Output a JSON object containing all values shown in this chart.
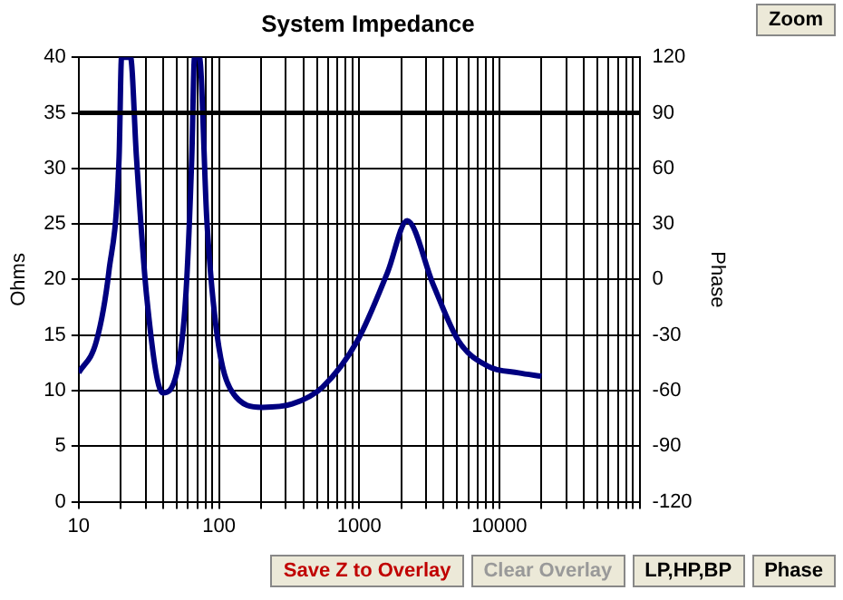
{
  "chart_data": {
    "type": "line",
    "title": "System Impedance",
    "x": [
      10,
      13.4,
      16.4,
      19.4,
      20.2,
      23.4,
      25.8,
      30.5,
      39.7,
      50,
      58,
      64,
      67,
      72.5,
      82,
      97,
      124,
      204,
      333,
      546,
      973,
      1600,
      2200,
      3360,
      5100,
      8300,
      13700,
      20000
    ],
    "series": [
      {
        "color": "#000080",
        "values": [
          11.6,
          14.5,
          20.7,
          31,
          40,
          40,
          31,
          18.5,
          9.8,
          11.6,
          18.5,
          31,
          40,
          40,
          25.3,
          15,
          9.9,
          8.5,
          8.8,
          10.3,
          14.5,
          20.7,
          25.3,
          19.6,
          14.5,
          12.2,
          11.6,
          11.3
        ]
      }
    ],
    "log": "x",
    "xlim": [
      10,
      100000
    ],
    "xticks": [
      10,
      {
        "value": 20,
        "label": null
      },
      {
        "value": 30,
        "label": null
      },
      {
        "value": 40,
        "label": null
      },
      {
        "value": 50,
        "label": null
      },
      {
        "value": 60,
        "label": null
      },
      {
        "value": 70,
        "label": null
      },
      {
        "value": 80,
        "label": null
      },
      {
        "value": 90,
        "label": null
      },
      100,
      {
        "value": 200,
        "label": null
      },
      {
        "value": 300,
        "label": null
      },
      {
        "value": 400,
        "label": null
      },
      {
        "value": 500,
        "label": null
      },
      {
        "value": 600,
        "label": null
      },
      {
        "value": 700,
        "label": null
      },
      {
        "value": 800,
        "label": null
      },
      {
        "value": 900,
        "label": null
      },
      1000,
      {
        "value": 2000,
        "label": null
      },
      {
        "value": 3000,
        "label": null
      },
      {
        "value": 4000,
        "label": null
      },
      {
        "value": 5000,
        "label": null
      },
      {
        "value": 6000,
        "label": null
      },
      {
        "value": 7000,
        "label": null
      },
      {
        "value": 8000,
        "label": null
      },
      {
        "value": 9000,
        "label": null
      },
      10000,
      {
        "value": 20000,
        "label": null
      },
      {
        "value": 30000,
        "label": null
      },
      {
        "value": 40000,
        "label": null
      },
      {
        "value": 50000,
        "label": null
      },
      {
        "value": 60000,
        "label": null
      },
      {
        "value": 70000,
        "label": null
      },
      {
        "value": 80000,
        "label": null
      },
      {
        "value": 90000,
        "label": null
      },
      {
        "value": 100000,
        "label": null
      }
    ],
    "ylim": [
      0,
      40
    ],
    "yticks": [
      0,
      5,
      10,
      15,
      20,
      25,
      30,
      35,
      40
    ],
    "y2lim": [
      -120,
      120
    ],
    "y2ticks": [
      -120,
      -90,
      -60,
      -30,
      0,
      30,
      60,
      90,
      120
    ],
    "ylabel": "Ohms",
    "y2label": "Phase",
    "ref_lines": [
      {
        "axis": "y",
        "value": 35,
        "color": "#000000"
      }
    ],
    "grid": true,
    "legend": false,
    "marker": "none",
    "line_style": "solid",
    "annotations": [
      "Zoom",
      "Save Z to Overlay",
      "Clear Overlay",
      "LP,HP,BP",
      "Phase"
    ]
  }
}
